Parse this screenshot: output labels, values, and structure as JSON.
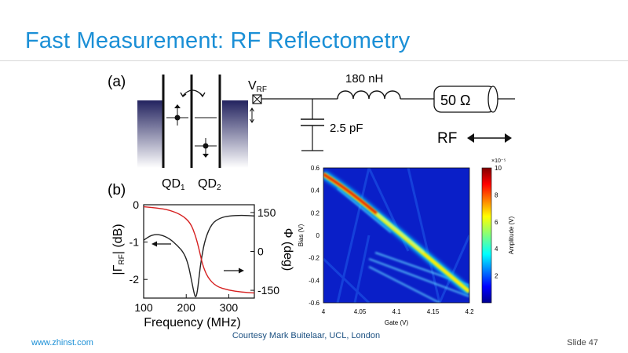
{
  "slide": {
    "title": "Fast Measurement: RF Reflectometry",
    "footer_url": "www.zhinst.com",
    "courtesy": "Courtesy Mark Buitelaar, UCL, London",
    "slide_number": "Slide 47"
  },
  "panel_a": {
    "label": "(a)",
    "qd1": "QD",
    "qd1_sub": "1",
    "qd2": "QD",
    "qd2_sub": "2",
    "vrf": "V",
    "vrf_sub": "RF",
    "inductor": "180 nH",
    "capacitor": "2.5 pF",
    "resistor": "50 Ω",
    "rf_label": "RF"
  },
  "panel_b": {
    "label": "(b)",
    "left_ylabel": "|Γ",
    "left_ylabel_sub": "RF",
    "left_ylabel_end": "| (dB)",
    "right_ylabel": "Φ (deg)",
    "xlabel": "Frequency (MHz)"
  },
  "colormap": {
    "xlabel": "Gate (V)",
    "ylabel": "Bias (V)",
    "colorbar_label": "Amplitude (V)",
    "colorbar_exponent": "×10⁻⁵",
    "colorbar_ticks": [
      "10",
      "8",
      "6",
      "4",
      "2"
    ]
  },
  "chart_data": [
    {
      "type": "line",
      "xlabel": "Frequency (MHz)",
      "ylabel": "|ΓRF| (dB)",
      "xlim": [
        100,
        360
      ],
      "ylim": [
        -2.5,
        0
      ],
      "x_ticks": [
        "100",
        "200",
        "300"
      ],
      "y_ticks_left": [
        "0",
        "-1",
        "-2"
      ],
      "y_ticks_right": [
        "150",
        "0",
        "-150"
      ],
      "y2lim": [
        -180,
        180
      ],
      "series": [
        {
          "axis": "left",
          "color": "#222222",
          "x": [
            100,
            120,
            140,
            160,
            180,
            195,
            205,
            212,
            218,
            222,
            226,
            230,
            236,
            245,
            260,
            280,
            300,
            330,
            360
          ],
          "y": [
            -0.95,
            -0.8,
            -0.8,
            -0.9,
            -1.1,
            -1.3,
            -1.6,
            -2.0,
            -2.35,
            -2.5,
            -2.35,
            -1.95,
            -1.4,
            -0.9,
            -0.5,
            -0.35,
            -0.3,
            -0.28,
            -0.3
          ]
        },
        {
          "axis": "right",
          "color": "#d62020",
          "x": [
            100,
            130,
            160,
            190,
            210,
            222,
            230,
            238,
            250,
            270,
            300,
            330,
            360
          ],
          "y": [
            172,
            168,
            160,
            140,
            110,
            60,
            10,
            -50,
            -100,
            -135,
            -150,
            -157,
            -160
          ]
        }
      ]
    },
    {
      "type": "heatmap",
      "xlabel": "Gate (V)",
      "ylabel": "Bias (V)",
      "xlim": [
        4,
        4.2
      ],
      "ylim": [
        -0.6,
        0.6
      ],
      "x_ticks": [
        "4",
        "4.05",
        "4.1",
        "4.15",
        "4.2"
      ],
      "y_ticks": [
        "0.6",
        "0.4",
        "0.2",
        "0",
        "-0.2",
        "-0.4",
        "-0.6"
      ],
      "colorbar_range": [
        0,
        10
      ],
      "colorbar_unit": "Amplitude (V) ×10⁻⁵"
    }
  ]
}
